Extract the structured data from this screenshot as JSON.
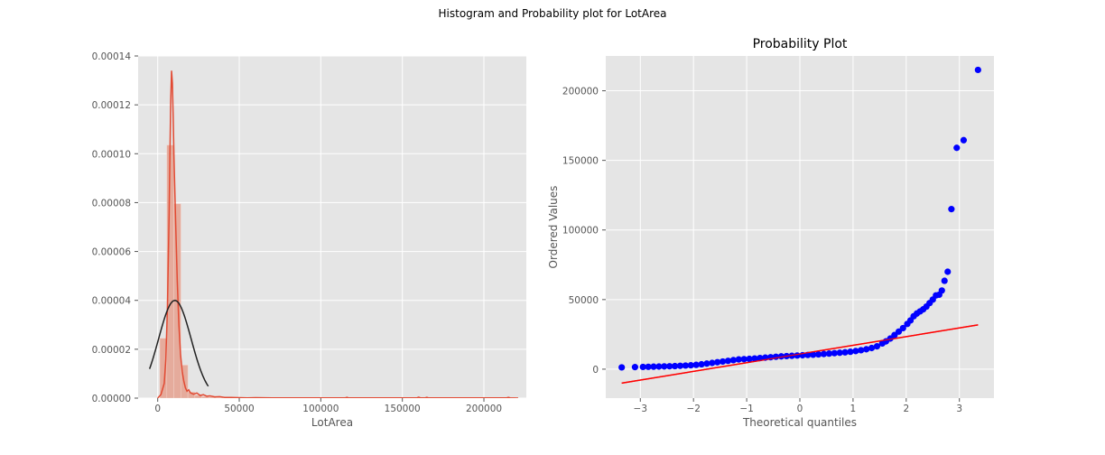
{
  "figure": {
    "suptitle": "Histogram and Probability plot for LotArea"
  },
  "colors": {
    "panel_bg": "#e5e5e5",
    "grid": "#ffffff",
    "tick_text": "#555555",
    "hist_bar": "#e5ab9c",
    "kde_line": "#e24a33",
    "normal_fit": "#222222",
    "scatter_points": "#0000ff",
    "fit_line": "#ff0000"
  },
  "chart_data": [
    {
      "type": "bar",
      "subtype": "histogram-with-kde",
      "title": "",
      "xlabel": "LotArea",
      "ylabel": "",
      "xlim": [
        -12000,
        226000
      ],
      "ylim": [
        0,
        0.00014
      ],
      "xticks": [
        0,
        50000,
        100000,
        150000,
        200000
      ],
      "xtick_labels": [
        "0",
        "50000",
        "100000",
        "150000",
        "200000"
      ],
      "yticks": [
        0,
        2e-05,
        4e-05,
        6e-05,
        8e-05,
        0.0001,
        0.00012,
        0.00014
      ],
      "ytick_labels": [
        "0.00000",
        "0.00002",
        "0.00004",
        "0.00006",
        "0.00008",
        "0.00010",
        "0.00012",
        "0.00014"
      ],
      "grid": true,
      "bins": [
        {
          "x0": 1300,
          "x1": 5600,
          "density": 2.45e-05
        },
        {
          "x0": 5600,
          "x1": 9900,
          "density": 0.0001035
        },
        {
          "x0": 9900,
          "x1": 14200,
          "density": 7.95e-05
        },
        {
          "x0": 14200,
          "x1": 18500,
          "density": 1.35e-05
        },
        {
          "x0": 18500,
          "x1": 22800,
          "density": 2.5e-06
        },
        {
          "x0": 22800,
          "x1": 27100,
          "density": 1.2e-06
        },
        {
          "x0": 27100,
          "x1": 31400,
          "density": 6e-07
        },
        {
          "x0": 31400,
          "x1": 35700,
          "density": 4e-07
        },
        {
          "x0": 35700,
          "x1": 40000,
          "density": 2e-07
        }
      ],
      "series": [
        {
          "kind": "kde",
          "x": [
            0,
            2000,
            4000,
            5000,
            6000,
            7000,
            7500,
            8000,
            8500,
            9000,
            9500,
            10000,
            11000,
            12000,
            13000,
            14000,
            15000,
            16000,
            17000,
            18000,
            19000,
            20000,
            22000,
            24000,
            26000,
            28000,
            30000,
            32000,
            35000,
            38000,
            41000,
            45000,
            50000,
            55000,
            60000,
            70000,
            80000,
            90000,
            100000,
            115000,
            116000,
            117000,
            130000,
            150000,
            159000,
            160000,
            161000,
            164000,
            165000,
            166000,
            180000,
            200000,
            214000,
            215000,
            216000,
            221000
          ],
          "y": [
            0,
            1.5e-06,
            6e-06,
            1.6e-05,
            3.8e-05,
            7.5e-05,
            0.0001,
            0.000122,
            0.000134,
            0.000129,
            0.000115,
            9.8e-05,
            7.2e-05,
            4.8e-05,
            3e-05,
            1.8e-05,
            1.1e-05,
            7e-06,
            4.2e-06,
            2.8e-06,
            3.4e-06,
            2.2e-06,
            1.6e-06,
            2.1e-06,
            1.1e-06,
            1.4e-06,
            8e-07,
            9e-07,
            5e-07,
            6e-07,
            3e-07,
            3e-07,
            2e-07,
            1e-07,
            2e-07,
            1e-07,
            1e-07,
            1e-07,
            1e-07,
            1e-07,
            3e-07,
            1e-07,
            1e-07,
            1e-07,
            1e-07,
            4e-07,
            1e-07,
            1e-07,
            3e-07,
            1e-07,
            1e-07,
            1e-07,
            1e-07,
            3e-07,
            1e-07,
            0
          ]
        },
        {
          "kind": "normal-fit",
          "mean": 10517,
          "std": 9981,
          "x_range": [
            -5000,
            31000
          ]
        }
      ]
    },
    {
      "type": "scatter",
      "subtype": "probability-plot",
      "title": "Probability Plot",
      "xlabel": "Theoretical quantiles",
      "ylabel": "Ordered Values",
      "xlim": [
        -3.65,
        3.65
      ],
      "ylim": [
        -20800,
        225000
      ],
      "xticks": [
        -3,
        -2,
        -1,
        0,
        1,
        2,
        3
      ],
      "xtick_labels": [
        "−3",
        "−2",
        "−1",
        "0",
        "1",
        "2",
        "3"
      ],
      "yticks": [
        0,
        50000,
        100000,
        150000,
        200000
      ],
      "ytick_labels": [
        "0",
        "50000",
        "100000",
        "150000",
        "200000"
      ],
      "grid": true,
      "series": [
        {
          "kind": "ordered-values",
          "x": [
            -3.35,
            -3.1,
            -2.95,
            -2.85,
            -2.75,
            -2.65,
            -2.55,
            -2.45,
            -2.35,
            -2.25,
            -2.15,
            -2.05,
            -1.95,
            -1.85,
            -1.75,
            -1.65,
            -1.55,
            -1.45,
            -1.35,
            -1.25,
            -1.15,
            -1.05,
            -0.95,
            -0.85,
            -0.75,
            -0.65,
            -0.55,
            -0.45,
            -0.35,
            -0.25,
            -0.15,
            -0.05,
            0.05,
            0.15,
            0.25,
            0.35,
            0.45,
            0.55,
            0.65,
            0.75,
            0.85,
            0.95,
            1.05,
            1.15,
            1.25,
            1.35,
            1.45,
            1.55,
            1.62,
            1.7,
            1.78,
            1.86,
            1.94,
            2.02,
            2.08,
            2.14,
            2.2,
            2.26,
            2.32,
            2.38,
            2.44,
            2.5,
            2.56,
            2.62,
            2.67,
            2.72,
            2.78,
            2.85,
            2.95,
            3.08,
            3.35
          ],
          "y": [
            1300,
            1500,
            1600,
            1700,
            1800,
            1900,
            2000,
            2100,
            2200,
            2400,
            2600,
            2800,
            3100,
            3500,
            4000,
            4500,
            5000,
            5500,
            6000,
            6500,
            7000,
            7200,
            7400,
            7700,
            8000,
            8300,
            8600,
            8900,
            9200,
            9400,
            9600,
            9800,
            10000,
            10200,
            10400,
            10600,
            10900,
            11200,
            11500,
            11800,
            12100,
            12500,
            13000,
            13600,
            14300,
            15200,
            16400,
            18500,
            20000,
            22000,
            24500,
            27000,
            29500,
            32500,
            35000,
            38000,
            40000,
            41500,
            43000,
            45000,
            47500,
            50000,
            53000,
            53500,
            56500,
            63500,
            70000,
            115000,
            159000,
            164500,
            215000
          ]
        },
        {
          "kind": "least-squares-fit",
          "x": [
            -3.35,
            3.35
          ],
          "y": [
            -10000,
            31800
          ]
        }
      ]
    }
  ]
}
